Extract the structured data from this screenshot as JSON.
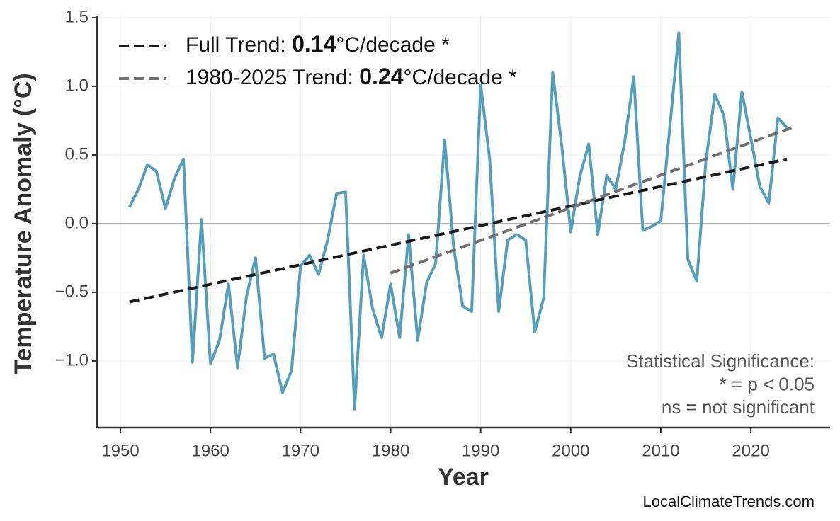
{
  "chart_data": {
    "type": "line",
    "x_label": "Year",
    "y_label": "Temperature Anomaly (°C)",
    "x": [
      1951,
      1952,
      1953,
      1954,
      1955,
      1956,
      1957,
      1958,
      1959,
      1960,
      1961,
      1962,
      1963,
      1964,
      1965,
      1966,
      1967,
      1968,
      1969,
      1970,
      1971,
      1972,
      1973,
      1974,
      1975,
      1976,
      1977,
      1978,
      1979,
      1980,
      1981,
      1982,
      1983,
      1984,
      1985,
      1986,
      1987,
      1988,
      1989,
      1990,
      1991,
      1992,
      1993,
      1994,
      1995,
      1996,
      1997,
      1998,
      1999,
      2000,
      2001,
      2002,
      2003,
      2004,
      2005,
      2006,
      2007,
      2008,
      2009,
      2010,
      2011,
      2012,
      2013,
      2014,
      2015,
      2016,
      2017,
      2018,
      2019,
      2020,
      2021,
      2022,
      2023,
      2024
    ],
    "series": [
      {
        "color": "#559fbd",
        "values": [
          0.12,
          0.25,
          0.43,
          0.38,
          0.11,
          0.33,
          0.47,
          -1.01,
          0.03,
          -1.02,
          -0.85,
          -0.44,
          -1.05,
          -0.53,
          -0.25,
          -0.98,
          -0.95,
          -1.23,
          -1.07,
          -0.31,
          -0.23,
          -0.37,
          -0.12,
          0.22,
          0.23,
          -1.35,
          -0.23,
          -0.62,
          -0.83,
          -0.44,
          -0.83,
          -0.08,
          -0.85,
          -0.43,
          -0.29,
          0.61,
          -0.17,
          -0.6,
          -0.64,
          1.01,
          0.47,
          -0.64,
          -0.12,
          -0.08,
          -0.12,
          -0.79,
          -0.54,
          1.1,
          0.57,
          -0.06,
          0.34,
          0.58,
          -0.08,
          0.35,
          0.25,
          0.6,
          1.07,
          -0.05,
          -0.02,
          0.02,
          0.7,
          1.39,
          -0.26,
          -0.42,
          0.45,
          0.94,
          0.79,
          0.25,
          0.96,
          0.62,
          0.27,
          0.15,
          0.77,
          0.7
        ]
      }
    ],
    "trends": [
      {
        "name": "Full Trend:",
        "slope": 0.14,
        "suffix": "°C/decade *",
        "color": "#1a1a1a",
        "x": [
          1951,
          2024
        ],
        "values": [
          -0.57,
          0.47
        ]
      },
      {
        "name": "1980-2025 Trend:",
        "slope": 0.24,
        "suffix": "°C/decade *",
        "color": "#707070",
        "x": [
          1980,
          2025
        ],
        "values": [
          -0.36,
          0.71
        ]
      }
    ],
    "annotation": [
      "Statistical Significance:",
      "* = p < 0.05",
      "ns = not significant"
    ],
    "watermark": "LocalClimateTrends.com",
    "xlim": [
      1947.4,
      2028.8
    ],
    "ylim": [
      -1.485,
      1.515
    ],
    "xticks": [
      1950,
      1960,
      1970,
      1980,
      1990,
      2000,
      2010,
      2020
    ],
    "yticks": [
      {
        "value": -1.0,
        "label": "−1.0"
      },
      {
        "value": -0.5,
        "label": "−0.5"
      },
      {
        "value": 0.0,
        "label": "0.0"
      },
      {
        "value": 0.5,
        "label": "0.5"
      },
      {
        "value": 1.0,
        "label": "1.0"
      },
      {
        "value": 1.5,
        "label": "1.5"
      }
    ],
    "zero_line": 0,
    "grid": true
  }
}
